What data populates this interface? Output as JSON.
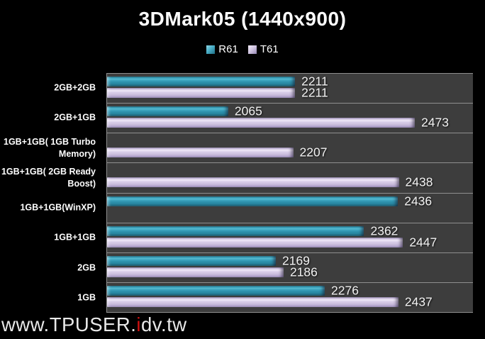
{
  "chart_data": {
    "type": "bar",
    "orientation": "horizontal",
    "title": "3DMark05 (1440x900)",
    "legend_position": "top-center",
    "data_labels": true,
    "grid": "category-separators-only",
    "xlim": [
      1800,
      2600
    ],
    "plot_background": "#3d3d3d",
    "separator_color": "#8f8f8f",
    "categories": [
      "2GB+2GB",
      "2GB+1GB",
      "1GB+1GB( 1GB Turbo Memory)",
      "1GB+1GB( 2GB Ready Boost)",
      "1GB+1GB(WinXP)",
      "1GB+1GB",
      "2GB",
      "1GB"
    ],
    "category_label_lines": [
      [
        "2GB+2GB"
      ],
      [
        "2GB+1GB"
      ],
      [
        "1GB+1GB( 1GB Turbo",
        "Memory)"
      ],
      [
        "1GB+1GB( 2GB Ready",
        "Boost)"
      ],
      [
        "1GB+1GB(WinXP)"
      ],
      [
        "1GB+1GB"
      ],
      [
        "2GB"
      ],
      [
        "1GB"
      ]
    ],
    "series": [
      {
        "name": "R61",
        "color": "#2e93b0",
        "values": [
          2211,
          2065,
          null,
          null,
          2436,
          2362,
          2169,
          2276
        ]
      },
      {
        "name": "T61",
        "color": "#cfc3e0",
        "values": [
          2211,
          2473,
          2207,
          2438,
          null,
          2447,
          2186,
          2437
        ]
      }
    ]
  },
  "watermark": {
    "prefix": "www.TPUSER.",
    "highlight": "i",
    "suffix": "dv.tw",
    "highlight_color": "#d01010"
  }
}
